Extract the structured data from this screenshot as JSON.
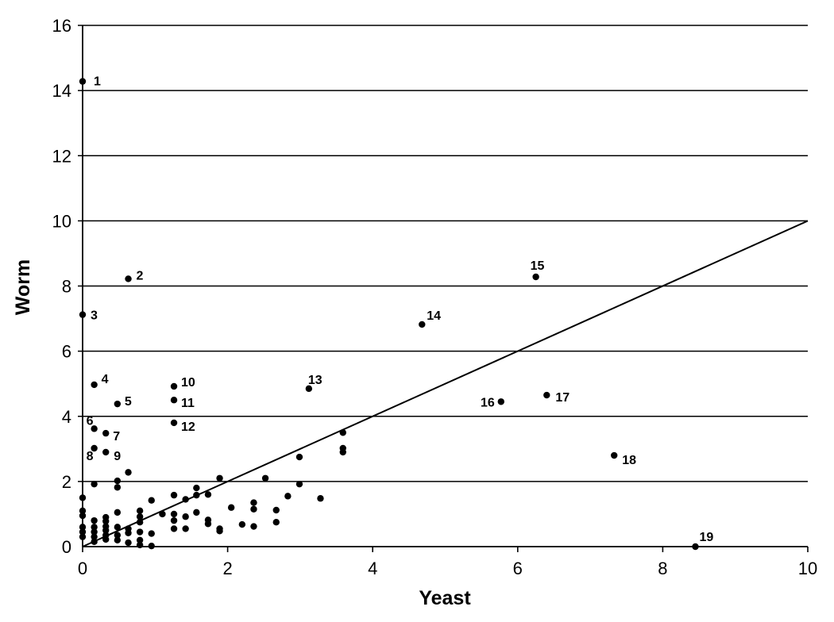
{
  "chart_data": {
    "type": "scatter",
    "title": "",
    "xlabel": "Yeast",
    "ylabel": "Worm",
    "xlim": [
      0,
      10
    ],
    "ylim": [
      0,
      16
    ],
    "x_ticks": [
      "0",
      "2",
      "4",
      "6",
      "8",
      "10"
    ],
    "y_ticks": [
      "0",
      "2",
      "4",
      "6",
      "8",
      "10",
      "12",
      "14",
      "16"
    ],
    "grid": "horizontal",
    "legend": "none",
    "trend_line": {
      "from": [
        0,
        0
      ],
      "to": [
        10,
        10
      ]
    },
    "colors": {
      "points": "#000000",
      "lines": "#000000",
      "background": "#ffffff"
    },
    "labeled_points": [
      {
        "label": "1",
        "x": 0.0,
        "y": 14.28
      },
      {
        "label": "2",
        "x": 0.63,
        "y": 8.22
      },
      {
        "label": "3",
        "x": 0.0,
        "y": 7.12
      },
      {
        "label": "4",
        "x": 0.16,
        "y": 4.97
      },
      {
        "label": "5",
        "x": 0.48,
        "y": 4.38
      },
      {
        "label": "6",
        "x": 0.16,
        "y": 3.62
      },
      {
        "label": "7",
        "x": 0.32,
        "y": 3.48
      },
      {
        "label": "8",
        "x": 0.16,
        "y": 3.02
      },
      {
        "label": "9",
        "x": 0.32,
        "y": 2.9
      },
      {
        "label": "10",
        "x": 1.26,
        "y": 4.92
      },
      {
        "label": "11",
        "x": 1.26,
        "y": 4.5
      },
      {
        "label": "12",
        "x": 1.26,
        "y": 3.8
      },
      {
        "label": "13",
        "x": 3.12,
        "y": 4.85
      },
      {
        "label": "14",
        "x": 4.68,
        "y": 6.82
      },
      {
        "label": "15",
        "x": 6.25,
        "y": 8.28
      },
      {
        "label": "16",
        "x": 5.77,
        "y": 4.45
      },
      {
        "label": "17",
        "x": 6.4,
        "y": 4.65
      },
      {
        "label": "18",
        "x": 7.33,
        "y": 2.8
      },
      {
        "label": "19",
        "x": 8.45,
        "y": 0.0
      }
    ],
    "unlabeled_points": [
      [
        0.0,
        1.5
      ],
      [
        0.0,
        1.1
      ],
      [
        0.0,
        0.95
      ],
      [
        0.0,
        0.6
      ],
      [
        0.0,
        0.45
      ],
      [
        0.0,
        0.3
      ],
      [
        0.16,
        1.92
      ],
      [
        0.16,
        0.8
      ],
      [
        0.16,
        0.6
      ],
      [
        0.16,
        0.45
      ],
      [
        0.16,
        0.3
      ],
      [
        0.16,
        0.15
      ],
      [
        0.32,
        0.9
      ],
      [
        0.32,
        0.78
      ],
      [
        0.32,
        0.62
      ],
      [
        0.32,
        0.5
      ],
      [
        0.32,
        0.35
      ],
      [
        0.32,
        0.22
      ],
      [
        0.48,
        2.02
      ],
      [
        0.48,
        1.82
      ],
      [
        0.48,
        1.05
      ],
      [
        0.48,
        0.6
      ],
      [
        0.48,
        0.35
      ],
      [
        0.48,
        0.2
      ],
      [
        0.63,
        2.28
      ],
      [
        0.63,
        0.55
      ],
      [
        0.63,
        0.42
      ],
      [
        0.63,
        0.12
      ],
      [
        0.79,
        1.1
      ],
      [
        0.79,
        0.92
      ],
      [
        0.79,
        0.75
      ],
      [
        0.79,
        0.45
      ],
      [
        0.79,
        0.2
      ],
      [
        0.79,
        0.05
      ],
      [
        0.95,
        1.42
      ],
      [
        0.95,
        0.4
      ],
      [
        0.95,
        0.02
      ],
      [
        1.1,
        1.0
      ],
      [
        1.26,
        1.58
      ],
      [
        1.26,
        1.0
      ],
      [
        1.26,
        0.8
      ],
      [
        1.26,
        0.55
      ],
      [
        1.42,
        1.45
      ],
      [
        1.42,
        0.92
      ],
      [
        1.42,
        0.55
      ],
      [
        1.57,
        1.8
      ],
      [
        1.57,
        1.58
      ],
      [
        1.57,
        1.05
      ],
      [
        1.73,
        1.6
      ],
      [
        1.73,
        0.82
      ],
      [
        1.73,
        0.7
      ],
      [
        1.89,
        2.1
      ],
      [
        1.89,
        0.55
      ],
      [
        1.89,
        0.48
      ],
      [
        2.05,
        1.2
      ],
      [
        2.2,
        0.68
      ],
      [
        2.36,
        1.35
      ],
      [
        2.36,
        1.15
      ],
      [
        2.36,
        0.62
      ],
      [
        2.52,
        2.1
      ],
      [
        2.67,
        1.12
      ],
      [
        2.67,
        0.75
      ],
      [
        2.83,
        1.55
      ],
      [
        2.99,
        2.75
      ],
      [
        2.99,
        1.92
      ],
      [
        3.28,
        1.48
      ],
      [
        3.59,
        3.5
      ],
      [
        3.59,
        3.02
      ],
      [
        3.59,
        2.9
      ]
    ]
  }
}
